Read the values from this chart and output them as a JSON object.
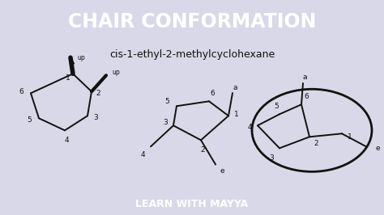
{
  "title": "CHAIR CONFORMATION",
  "subtitle": "cis-1-ethyl-2-methylcyclohexane",
  "footer": "LEARN WITH MAYYA",
  "title_bg": "#6b35b0",
  "footer_bg": "#2255bb",
  "bg_color": "#d8d8e8",
  "title_color": "#ffffff",
  "footer_color": "#ffffff",
  "subtitle_color": "#111111",
  "draw_color": "#111111",
  "fig_width": 4.74,
  "fig_height": 2.66
}
